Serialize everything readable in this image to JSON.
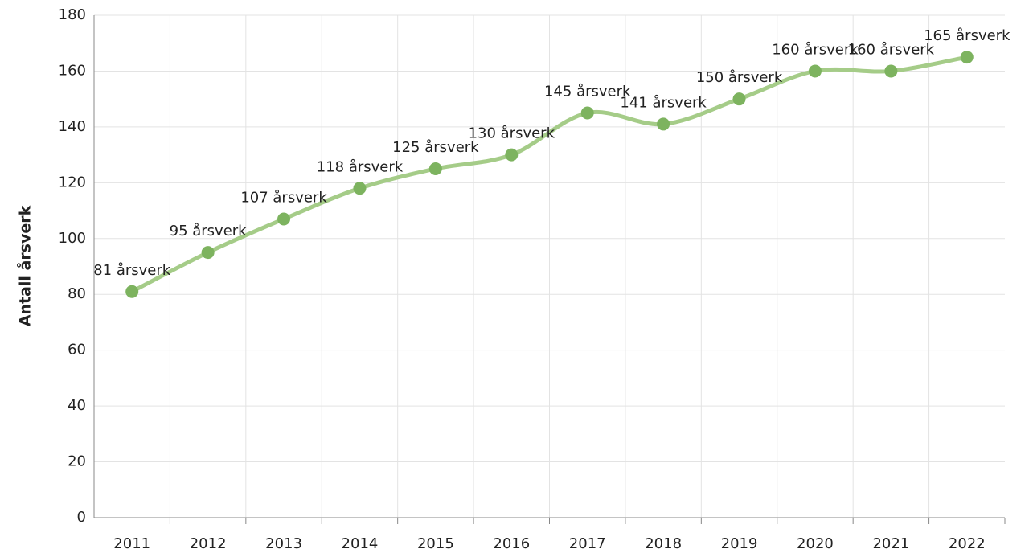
{
  "chart_data": {
    "type": "line",
    "y_label": "Antall årsverk",
    "categories": [
      "2011",
      "2012",
      "2013",
      "2014",
      "2015",
      "2016",
      "2017",
      "2018",
      "2019",
      "2020",
      "2021",
      "2022"
    ],
    "series": [
      {
        "name": "Antall årsverk",
        "color": "#7db35f",
        "line_color": "#a5cc88",
        "values": [
          81,
          95,
          107,
          118,
          125,
          130,
          145,
          141,
          150,
          160,
          160,
          165
        ],
        "value_labels": [
          "81 årsverk",
          "95 årsverk",
          "107 årsverk",
          "118 årsverk",
          "125 årsverk",
          "130 årsverk",
          "145 årsverk",
          "141 årsverk",
          "150 årsverk",
          "160 årsverk",
          "160 årsverk",
          "165 årsverk"
        ]
      }
    ],
    "ylim": [
      0,
      180
    ],
    "yticks": [
      0,
      20,
      40,
      60,
      80,
      100,
      120,
      140,
      160,
      180
    ],
    "grid": true,
    "smooth": true
  }
}
